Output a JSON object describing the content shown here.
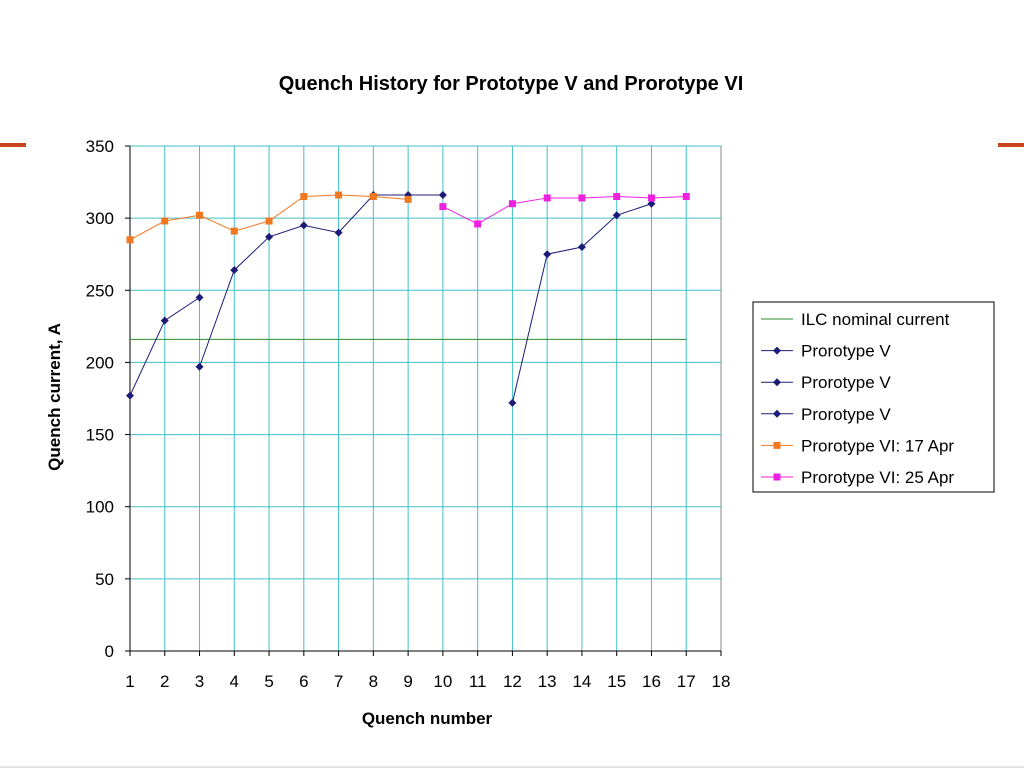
{
  "decor": {
    "accent_color": "#c8441b"
  },
  "chart_data": {
    "type": "line",
    "title": "Quench History for Prototype V and Prorotype VI",
    "xlabel": "Quench number",
    "ylabel": "Quench current, A",
    "xlim": [
      1,
      18
    ],
    "ylim": [
      0,
      350
    ],
    "x_ticks": [
      1,
      2,
      3,
      4,
      5,
      6,
      7,
      8,
      9,
      10,
      11,
      12,
      13,
      14,
      15,
      16,
      17,
      18
    ],
    "y_ticks": [
      0,
      50,
      100,
      150,
      200,
      250,
      300,
      350
    ],
    "grid": true,
    "grid_color": "#40c0c8",
    "legend_position": "right",
    "series": [
      {
        "name": "ILC nominal current",
        "color": "#2e8b2e",
        "marker": "none",
        "x": [
          1,
          17
        ],
        "y": [
          216,
          216
        ]
      },
      {
        "name": "Prorotype V",
        "color": "#1c1c78",
        "marker": "diamond",
        "x": [
          1,
          2,
          3
        ],
        "y": [
          177,
          229,
          245
        ]
      },
      {
        "name": "Prorotype V",
        "color": "#1c1c78",
        "marker": "diamond",
        "x": [
          3,
          4,
          5,
          6,
          7,
          8,
          9,
          10
        ],
        "y": [
          197,
          264,
          287,
          295,
          290,
          316,
          316,
          316
        ]
      },
      {
        "name": "Prorotype V",
        "color": "#1c1c78",
        "marker": "diamond",
        "x": [
          12,
          13,
          14,
          15,
          16
        ],
        "y": [
          172,
          275,
          280,
          302,
          310
        ]
      },
      {
        "name": "Prorotype VI: 17 Apr",
        "color": "#f07820",
        "marker": "square",
        "x": [
          1,
          2,
          3,
          4,
          5,
          6,
          7,
          8,
          9
        ],
        "y": [
          285,
          298,
          302,
          291,
          298,
          315,
          316,
          315,
          313
        ]
      },
      {
        "name": "Prorotype VI: 25 Apr",
        "color": "#f020e0",
        "marker": "square",
        "x": [
          10,
          11,
          12,
          13,
          14,
          15,
          16,
          17
        ],
        "y": [
          308,
          296,
          310,
          314,
          314,
          315,
          314,
          315
        ]
      }
    ]
  }
}
